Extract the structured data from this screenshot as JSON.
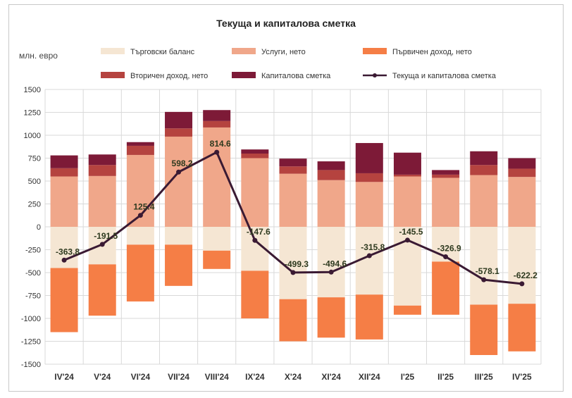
{
  "chart_data": {
    "type": "bar",
    "title": "Текуща и капиталова сметка",
    "ylabel": "млн. евро",
    "ylim": [
      -1500,
      1500
    ],
    "yticks": [
      1500,
      1250,
      1000,
      750,
      500,
      250,
      0,
      -250,
      -500,
      -750,
      -1000,
      -1250,
      -1500
    ],
    "categories": [
      "IV'24",
      "V'24",
      "VI'24",
      "VII'24",
      "VIII'24",
      "IX'24",
      "X'24",
      "XI'24",
      "XII'24",
      "I'25",
      "II'25",
      "III'25",
      "IV'25"
    ],
    "legend_position": "top",
    "series": [
      {
        "name": "Търговски баланс",
        "kind": "bar",
        "color": "#f5e6d3",
        "values": [
          -450,
          -410,
          -195,
          -195,
          -260,
          -480,
          -790,
          -770,
          -740,
          -860,
          -380,
          -850,
          -840
        ]
      },
      {
        "name": "Услуги, нето",
        "kind": "bar",
        "color": "#f0a78a",
        "values": [
          550,
          555,
          785,
          985,
          1085,
          750,
          580,
          510,
          490,
          550,
          535,
          565,
          545
        ]
      },
      {
        "name": "Първичен доход, нето",
        "kind": "bar",
        "color": "#f57e46",
        "values": [
          -700,
          -560,
          -620,
          -450,
          -200,
          -520,
          -460,
          -440,
          -490,
          -100,
          -580,
          -550,
          -520
        ]
      },
      {
        "name": "Вторичен доход, нето",
        "kind": "bar",
        "color": "#b5433f",
        "values": [
          90,
          120,
          100,
          90,
          70,
          50,
          80,
          110,
          95,
          20,
          35,
          110,
          90
        ]
      },
      {
        "name": "Капиталова сметка",
        "kind": "bar",
        "color": "#7d1a37",
        "values": [
          140,
          115,
          40,
          180,
          120,
          45,
          85,
          95,
          330,
          240,
          50,
          150,
          115
        ]
      },
      {
        "name": "Текуща и капиталова сметка",
        "kind": "line",
        "color": "#3a1a33",
        "values": [
          -363.8,
          -191.5,
          125.4,
          598.2,
          814.6,
          -147.6,
          -499.3,
          -494.6,
          -315.8,
          -145.5,
          -326.9,
          -578.1,
          -622.2
        ],
        "labels": [
          "-363.8",
          "-191.5",
          "125.4",
          "598.2",
          "814.6",
          "-147.6",
          "-499.3",
          "-494.6",
          "-315.8",
          "-145.5",
          "-326.9",
          "-578.1",
          "-622.2"
        ]
      }
    ],
    "grid": true
  }
}
